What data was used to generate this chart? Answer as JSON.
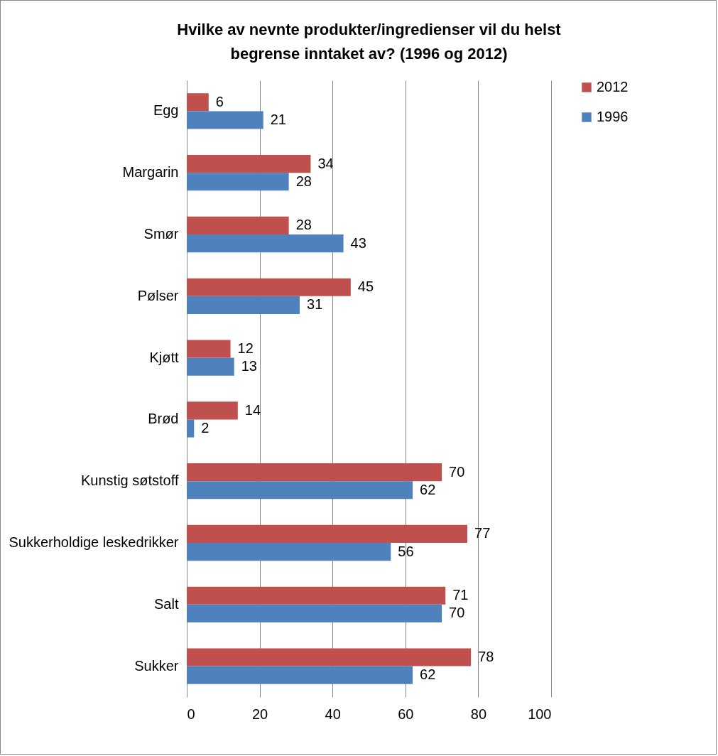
{
  "chart_data": {
    "type": "bar",
    "orientation": "horizontal",
    "title": "Hvilke av nevnte produkter/ingredienser vil du helst begrense inntaket av? (1996 og 2012)",
    "categories": [
      "Egg",
      "Margarin",
      "Smør",
      "Pølser",
      "Kjøtt",
      "Brød",
      "Kunstig søtstoff",
      "Sukkerholdige leskedrikker",
      "Salt",
      "Sukker"
    ],
    "series": [
      {
        "name": "2012",
        "color": "#c0504d",
        "values": [
          6,
          34,
          28,
          45,
          12,
          14,
          70,
          77,
          71,
          78
        ]
      },
      {
        "name": "1996",
        "color": "#4f81bd",
        "values": [
          21,
          28,
          43,
          31,
          13,
          2,
          62,
          56,
          70,
          62
        ]
      }
    ],
    "xlim": [
      0,
      100
    ],
    "xticks": [
      0,
      20,
      40,
      60,
      80,
      100
    ],
    "grid": "x",
    "legend": "right",
    "data_labels": true
  }
}
